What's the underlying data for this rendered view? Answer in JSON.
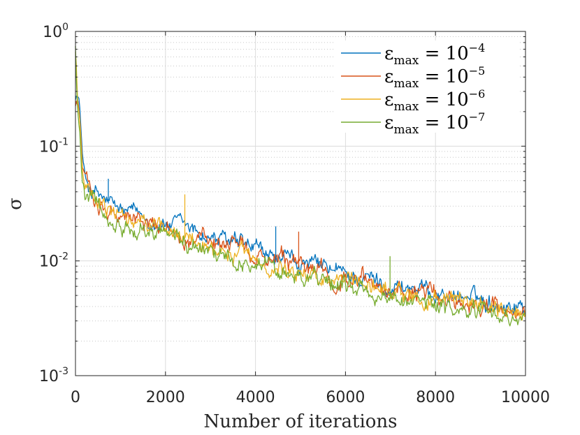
{
  "chart_data": {
    "type": "line",
    "title": "",
    "xlabel": "Number of iterations",
    "ylabel": "σ",
    "xlim": [
      0,
      10000
    ],
    "ylim": [
      0.001,
      1
    ],
    "yscale": "log",
    "grid": true,
    "legend_position": "top-right",
    "x_ticks": [
      {
        "value": 0,
        "label": "0"
      },
      {
        "value": 2000,
        "label": "2000"
      },
      {
        "value": 4000,
        "label": "4000"
      },
      {
        "value": 6000,
        "label": "6000"
      },
      {
        "value": 8000,
        "label": "8000"
      },
      {
        "value": 10000,
        "label": "10000"
      }
    ],
    "y_ticks": [
      {
        "value": 1,
        "base": "10",
        "exp": "0"
      },
      {
        "value": 0.1,
        "base": "10",
        "exp": "-1"
      },
      {
        "value": 0.01,
        "base": "10",
        "exp": "-2"
      },
      {
        "value": 0.001,
        "base": "10",
        "exp": "-3"
      }
    ],
    "series": [
      {
        "name": "ε_max = 10^-4",
        "label_main": "ε",
        "label_sub": "max",
        "label_eq": " = 10",
        "label_exp": "−4",
        "color": "#0072BD",
        "x": [
          0,
          50,
          100,
          150,
          200,
          300,
          400,
          600,
          800,
          1000,
          1500,
          2000,
          2500,
          3000,
          3500,
          4000,
          4500,
          5000,
          5500,
          6000,
          6500,
          7000,
          7500,
          8000,
          8500,
          9000,
          9500,
          10000
        ],
        "y": [
          0.3,
          0.27,
          0.22,
          0.08,
          0.055,
          0.045,
          0.04,
          0.035,
          0.03,
          0.027,
          0.024,
          0.021,
          0.019,
          0.016,
          0.014,
          0.012,
          0.01,
          0.0095,
          0.0085,
          0.0075,
          0.007,
          0.0062,
          0.0058,
          0.0053,
          0.005,
          0.0045,
          0.0043,
          0.004
        ]
      },
      {
        "name": "ε_max = 10^-5",
        "label_main": "ε",
        "label_sub": "max",
        "label_eq": " = 10",
        "label_exp": "−5",
        "color": "#D95319",
        "x": [
          0,
          50,
          100,
          150,
          200,
          300,
          400,
          600,
          800,
          1000,
          1500,
          2000,
          2500,
          3000,
          3500,
          4000,
          4500,
          5000,
          5500,
          6000,
          6500,
          7000,
          7500,
          8000,
          8500,
          9000,
          9500,
          10000
        ],
        "y": [
          0.25,
          0.23,
          0.18,
          0.07,
          0.05,
          0.042,
          0.037,
          0.032,
          0.028,
          0.025,
          0.022,
          0.019,
          0.017,
          0.0145,
          0.0125,
          0.0108,
          0.0093,
          0.0087,
          0.0078,
          0.0069,
          0.0064,
          0.0058,
          0.0053,
          0.0049,
          0.0046,
          0.0042,
          0.0039,
          0.0036
        ]
      },
      {
        "name": "ε_max = 10^-6",
        "label_main": "ε",
        "label_sub": "max",
        "label_eq": " = 10",
        "label_exp": "−6",
        "color": "#EDB120",
        "x": [
          0,
          50,
          100,
          150,
          200,
          300,
          400,
          600,
          800,
          1000,
          1500,
          2000,
          2500,
          3000,
          3500,
          4000,
          4500,
          5000,
          5500,
          6000,
          6500,
          7000,
          7500,
          8000,
          8500,
          9000,
          9500,
          10000
        ],
        "y": [
          0.7,
          0.24,
          0.17,
          0.065,
          0.047,
          0.04,
          0.035,
          0.03,
          0.026,
          0.023,
          0.0205,
          0.018,
          0.016,
          0.0135,
          0.0118,
          0.0102,
          0.0088,
          0.0082,
          0.0074,
          0.0066,
          0.006,
          0.0054,
          0.005,
          0.0046,
          0.0043,
          0.004,
          0.0037,
          0.0034
        ]
      },
      {
        "name": "ε_max = 10^-7",
        "label_main": "ε",
        "label_sub": "max",
        "label_eq": " = 10",
        "label_exp": "−7",
        "color": "#77AC30",
        "x": [
          0,
          50,
          100,
          150,
          200,
          300,
          400,
          600,
          800,
          1000,
          1500,
          2000,
          2500,
          3000,
          3500,
          4000,
          4500,
          5000,
          5500,
          6000,
          6500,
          7000,
          7500,
          8000,
          8500,
          9000,
          9500,
          10000
        ],
        "y": [
          0.75,
          0.22,
          0.15,
          0.06,
          0.043,
          0.037,
          0.033,
          0.028,
          0.025,
          0.022,
          0.019,
          0.0168,
          0.0148,
          0.0125,
          0.011,
          0.0095,
          0.0082,
          0.0076,
          0.0068,
          0.006,
          0.0054,
          0.0049,
          0.0045,
          0.0041,
          0.0038,
          0.0035,
          0.0033,
          0.003
        ]
      }
    ],
    "spikes": [
      {
        "series": 0,
        "x": 730,
        "y": 0.052
      },
      {
        "series": 2,
        "x": 2430,
        "y": 0.038
      },
      {
        "series": 0,
        "x": 4450,
        "y": 0.02
      },
      {
        "series": 1,
        "x": 4960,
        "y": 0.018
      },
      {
        "series": 3,
        "x": 6990,
        "y": 0.011
      }
    ]
  }
}
